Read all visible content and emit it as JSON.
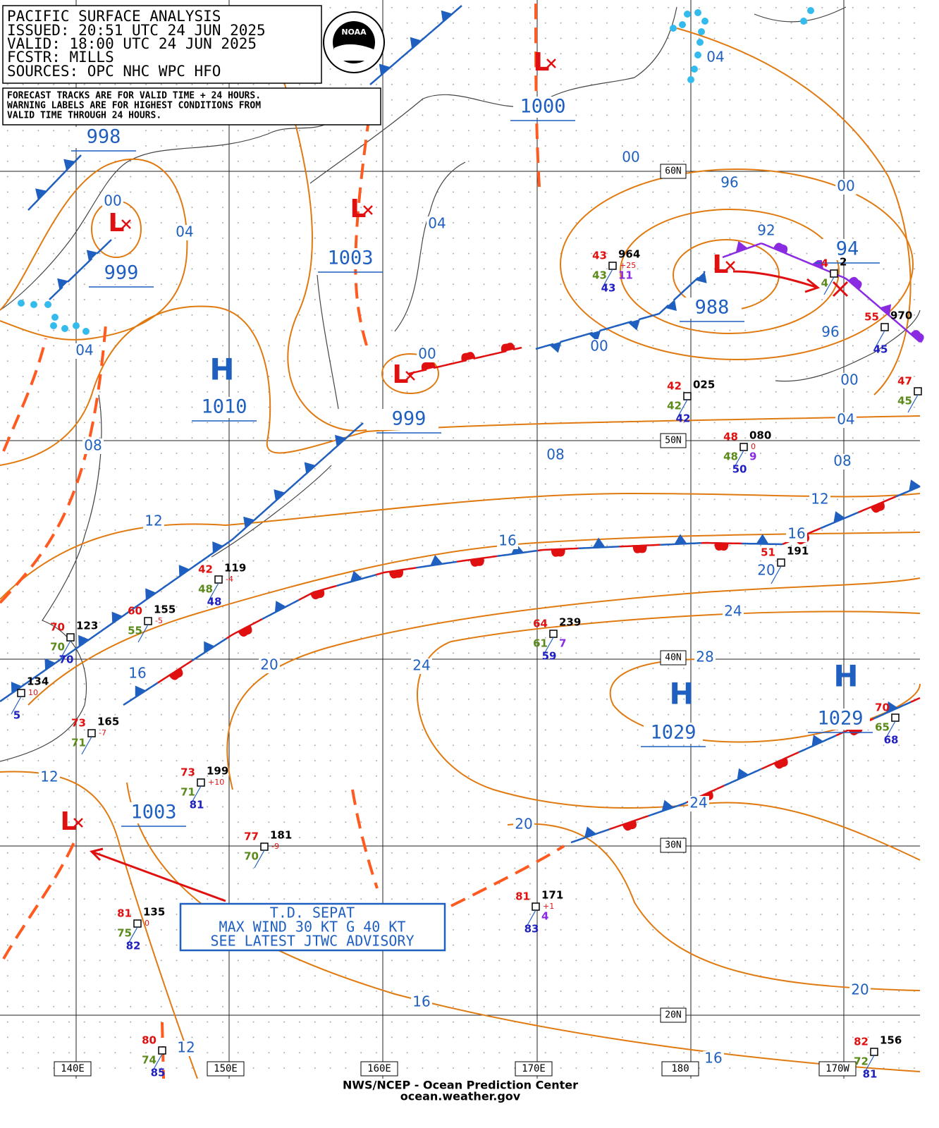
{
  "header": {
    "lines": [
      "PACIFIC SURFACE ANALYSIS",
      "ISSUED: 20:51 UTC 24 JUN 2025",
      "VALID:  18:00 UTC 24 JUN 2025",
      "FCSTR:  MILLS",
      "SOURCES: OPC NHC WPC HFO"
    ]
  },
  "logo": "NOAA",
  "notice": {
    "lines": [
      "FORECAST TRACKS ARE FOR VALID TIME + 24 HOURS.",
      "WARNING LABELS ARE FOR HIGHEST CONDITIONS FROM",
      "VALID TIME THROUGH 24 HOURS."
    ]
  },
  "advisory": {
    "lines": [
      "T.D. SEPAT",
      "MAX WIND 30 KT G 40 KT",
      "SEE LATEST JTWC ADVISORY"
    ]
  },
  "footer": {
    "lines": [
      "NWS/NCEP - Ocean Prediction Center",
      "ocean.weather.gov"
    ]
  },
  "latitudes": [
    "60N",
    "50N",
    "40N",
    "30N",
    "20N"
  ],
  "longitudes": [
    "140E",
    "150E",
    "160E",
    "170E",
    "180",
    "170W"
  ],
  "centers": [
    {
      "symbol": "L",
      "pressure": 1000
    },
    {
      "symbol": "L",
      "pressure": 999
    },
    {
      "symbol": "L",
      "pressure": 1003
    },
    {
      "symbol": "L",
      "pressure": 988
    },
    {
      "symbol": "L",
      "pressure": 999
    },
    {
      "symbol": "H",
      "pressure": 1010
    },
    {
      "symbol": "H",
      "pressure": 1029
    },
    {
      "symbol": "H",
      "pressure": 1029
    },
    {
      "symbol": "L",
      "pressure": 1003
    },
    {
      "pressure": 998
    },
    {
      "pressure": 94
    }
  ],
  "isobar_labels": [
    "04",
    "00",
    "96",
    "00",
    "92",
    "04",
    "00",
    "04",
    "04",
    "00",
    "00",
    "96",
    "00",
    "04",
    "08",
    "08",
    "08",
    "12",
    "12",
    "16",
    "16",
    "20",
    "24",
    "20",
    "24",
    "28",
    "16",
    "12",
    "20",
    "24",
    "20",
    "16",
    "12",
    "16"
  ],
  "stations": [
    {
      "red": "43",
      "pressure": "964",
      "green": "43",
      "tendency": "+25",
      "purple": "11",
      "blue": "43"
    },
    {
      "red": "42",
      "pressure": "025",
      "green": "42",
      "blue": "42"
    },
    {
      "red": "48",
      "pressure": "080",
      "green": "48",
      "tendency": "0",
      "purple": "9",
      "blue": "50"
    },
    {
      "red": "55",
      "pressure": "970",
      "blue": "45"
    },
    {
      "red": "47",
      "green": "45"
    },
    {
      "red": "42",
      "pressure": "119",
      "green": "48",
      "tendency": "-4",
      "blue": "48"
    },
    {
      "red": "60",
      "pressure": "155",
      "green": "55",
      "tendency": "-5"
    },
    {
      "red": "70",
      "pressure": "123",
      "green": "70",
      "blue": "70"
    },
    {
      "pressure": "134",
      "tendency": "10",
      "blue": "5"
    },
    {
      "red": "73",
      "pressure": "165",
      "green": "71",
      "tendency": "-7"
    },
    {
      "red": "73",
      "pressure": "199",
      "green": "71",
      "tendency": "+10",
      "blue": "81"
    },
    {
      "red": "77",
      "pressure": "181",
      "green": "70",
      "tendency": "-9"
    },
    {
      "red": "81",
      "pressure": "135",
      "green": "75",
      "tendency": "0",
      "blue": "82"
    },
    {
      "red": "81",
      "pressure": "171",
      "tendency": "+1",
      "purple": "4",
      "blue": "83"
    },
    {
      "red": "64",
      "pressure": "239",
      "green": "61",
      "purple": "7",
      "blue": "59"
    },
    {
      "red": "51",
      "pressure": "191"
    },
    {
      "red": "82",
      "pressure": "156",
      "green": "72",
      "blue": "81"
    },
    {
      "red": "70",
      "green": "65",
      "blue": "68"
    },
    {
      "red": "80",
      "green": "74",
      "blue": "85"
    },
    {
      "red": "4",
      "pressure": "2",
      "green": "4"
    }
  ]
}
